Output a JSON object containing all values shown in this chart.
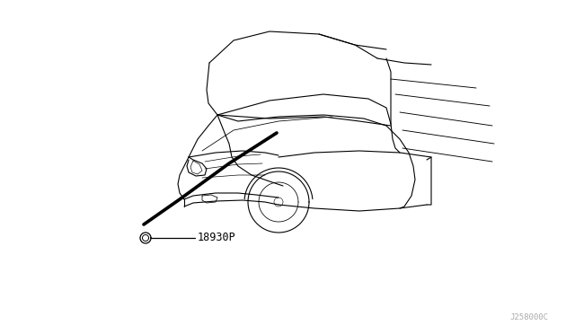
{
  "bg_color": "#ffffff",
  "line_color": "#000000",
  "fig_width": 6.4,
  "fig_height": 3.72,
  "dpi": 100,
  "part_label": "18930P",
  "diagram_code": "J258000C",
  "line_gray": "#888888"
}
